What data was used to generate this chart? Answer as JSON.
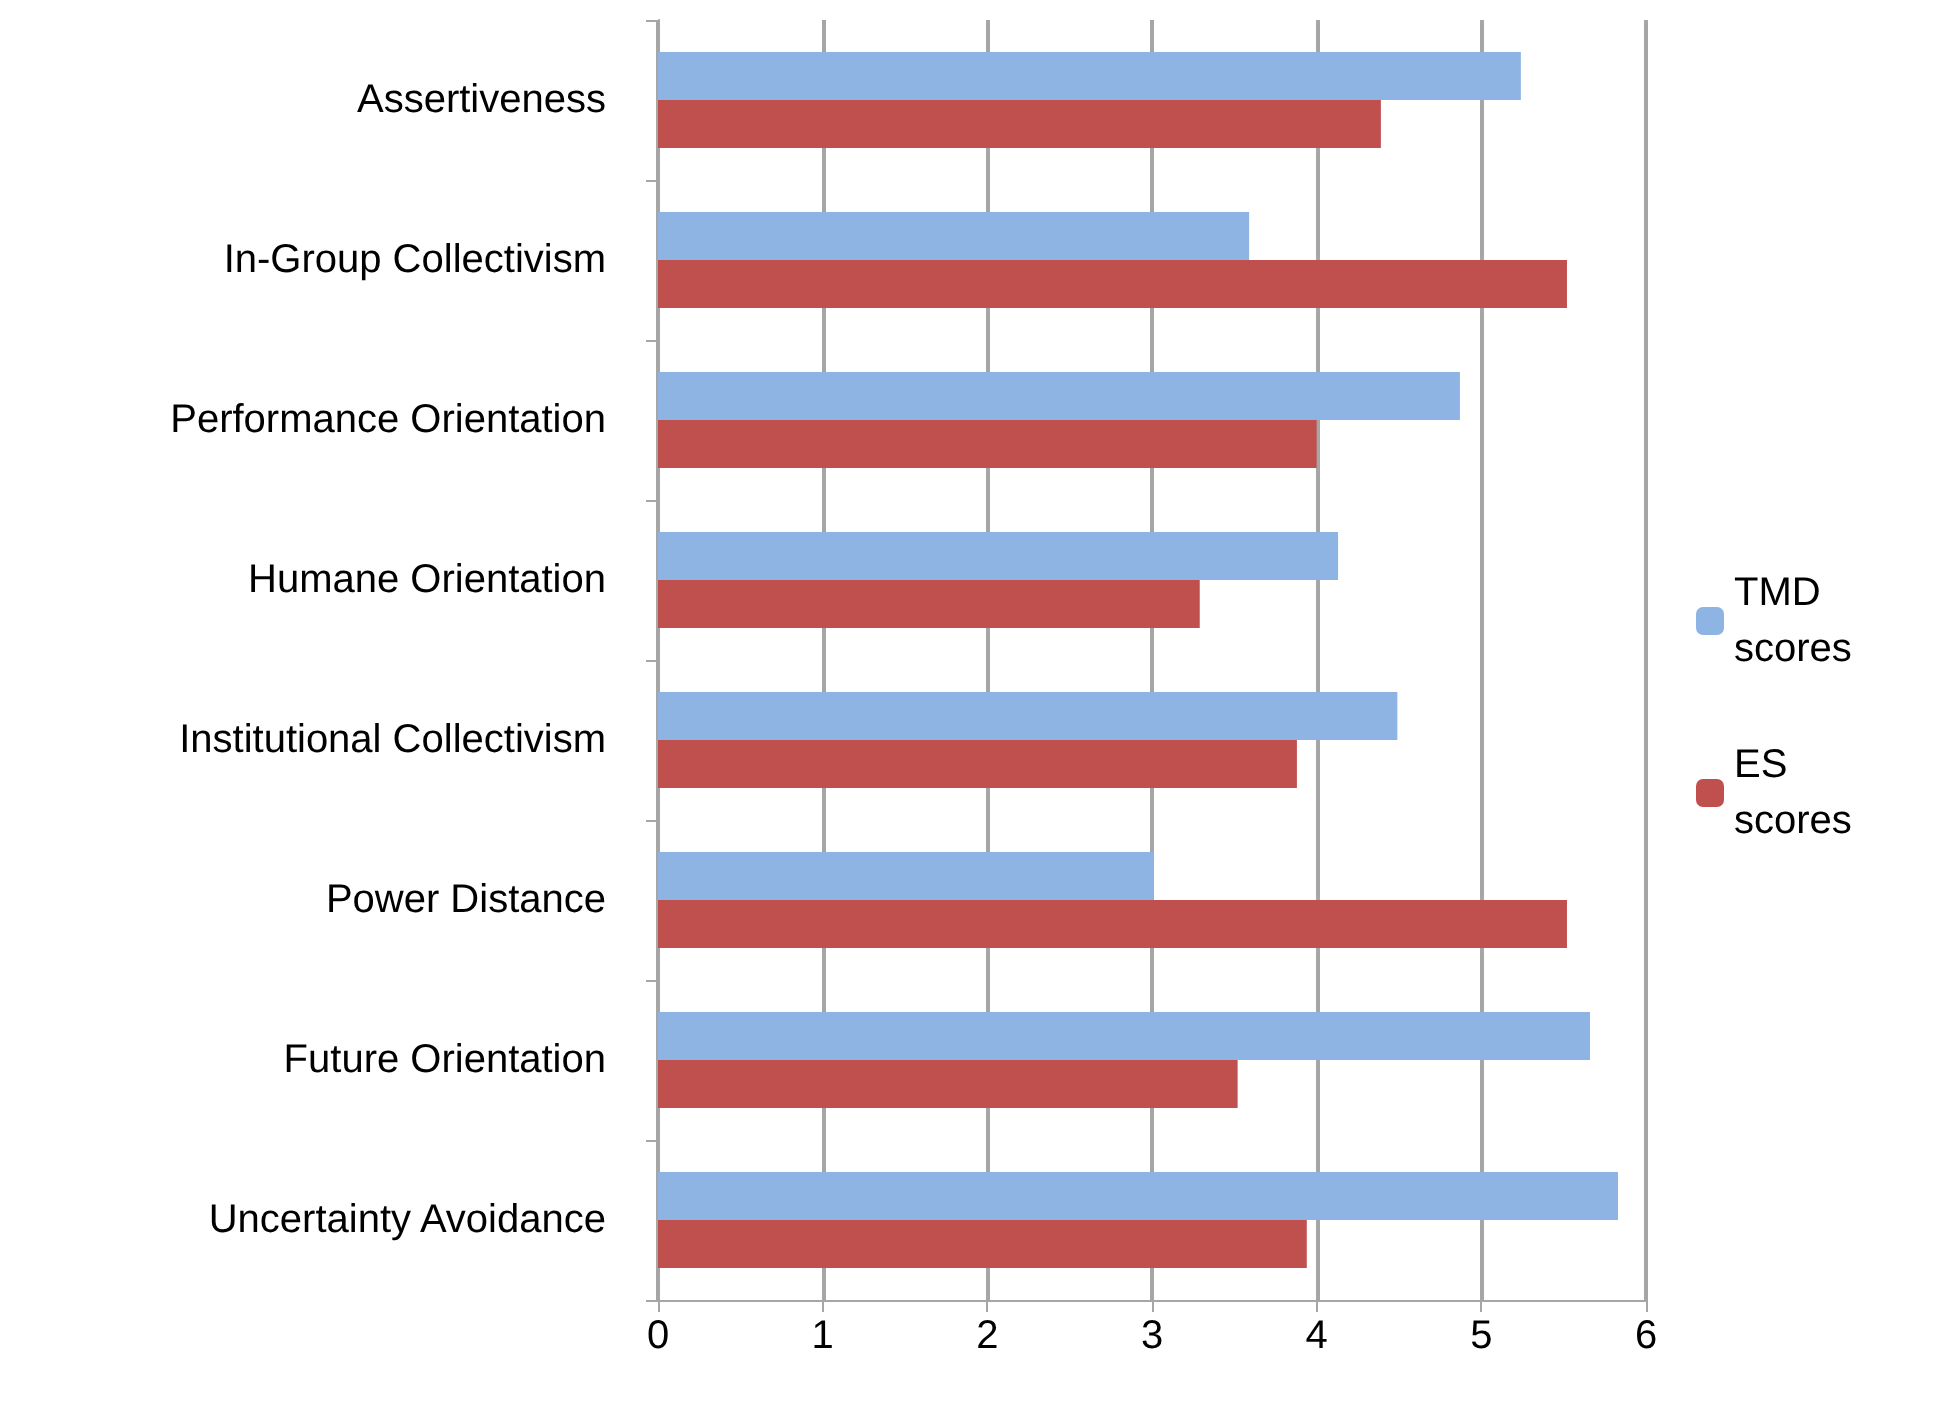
{
  "chart_data": {
    "type": "bar",
    "orientation": "horizontal",
    "categories": [
      "Assertiveness",
      "In-Group Collectivism",
      "Performance Orientation",
      "Humane Orientation",
      "Institutional Collectivism",
      "Power Distance",
      "Future Orientation",
      "Uncertainty Avoidance"
    ],
    "series": [
      {
        "name": "TMD scores",
        "color": "#8eb4e3",
        "values": [
          5.24,
          3.59,
          4.87,
          4.13,
          4.49,
          3.01,
          5.66,
          5.83
        ]
      },
      {
        "name": "ES scores",
        "color": "#c0504d",
        "values": [
          4.39,
          5.52,
          4.0,
          3.29,
          3.88,
          5.52,
          3.52,
          3.94
        ]
      }
    ],
    "xlim": [
      0,
      6
    ],
    "xticks": [
      0,
      1,
      2,
      3,
      4,
      5,
      6
    ],
    "grid": "x",
    "legend": "right"
  }
}
